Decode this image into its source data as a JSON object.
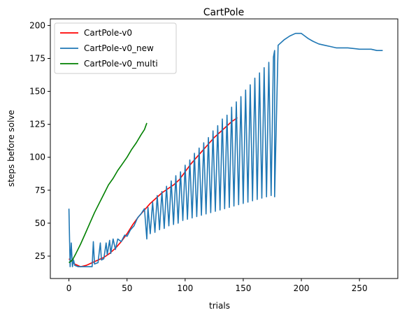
{
  "chart_data": {
    "type": "line",
    "title": "CartPole",
    "xlabel": "trials",
    "ylabel": "steps before solve",
    "xlim": [
      -16,
      283
    ],
    "ylim": [
      8,
      205
    ],
    "xticks": [
      0,
      50,
      100,
      150,
      200,
      250
    ],
    "yticks": [
      25,
      50,
      75,
      100,
      125,
      150,
      175,
      200
    ],
    "grid": false,
    "legend_position": "top-left",
    "series": [
      {
        "name": "CartPole-v0",
        "color": "#ff0000",
        "x": [
          0,
          5,
          10,
          15,
          20,
          25,
          30,
          35,
          40,
          45,
          50,
          55,
          60,
          65,
          70,
          75,
          80,
          85,
          90,
          95,
          100,
          105,
          110,
          115,
          120,
          125,
          130,
          135,
          140,
          145
        ],
        "y": [
          23,
          19,
          17,
          18,
          20,
          22,
          24,
          27,
          31,
          36,
          42,
          49,
          55,
          60,
          65,
          69,
          73,
          76,
          79,
          83,
          89,
          95,
          100,
          105,
          110,
          115,
          119,
          123,
          127,
          130
        ]
      },
      {
        "name": "CartPole-v0_new",
        "color": "#1f77b4",
        "x": [
          0,
          1,
          2,
          3,
          4,
          5,
          8,
          12,
          16,
          20,
          21,
          22,
          25,
          27,
          28,
          30,
          32,
          33,
          35,
          36,
          38,
          40,
          42,
          45,
          48,
          50,
          53,
          56,
          59,
          62,
          65,
          67,
          68,
          70,
          72,
          74,
          76,
          78,
          80,
          82,
          84,
          86,
          88,
          90,
          92,
          94,
          96,
          98,
          100,
          102,
          104,
          106,
          108,
          110,
          112,
          114,
          116,
          118,
          120,
          122,
          124,
          126,
          128,
          130,
          132,
          134,
          136,
          138,
          140,
          142,
          144,
          146,
          148,
          150,
          152,
          154,
          156,
          158,
          160,
          162,
          164,
          166,
          168,
          170,
          172,
          174,
          176,
          177,
          177,
          180,
          185,
          190,
          195,
          198,
          200,
          203,
          206,
          210,
          215,
          220,
          225,
          230,
          240,
          250,
          255,
          260,
          265,
          270
        ],
        "y": [
          61,
          17,
          35,
          17,
          22,
          18,
          17,
          17,
          17,
          17,
          36,
          19,
          20,
          35,
          22,
          23,
          35,
          26,
          37,
          27,
          38,
          30,
          38,
          36,
          41,
          40,
          45,
          48,
          54,
          57,
          61,
          38,
          62,
          42,
          66,
          43,
          71,
          45,
          74,
          46,
          78,
          48,
          82,
          49,
          86,
          50,
          89,
          52,
          94,
          53,
          98,
          54,
          103,
          55,
          107,
          56,
          111,
          57,
          115,
          58,
          120,
          59,
          124,
          60,
          129,
          61,
          132,
          62,
          138,
          63,
          142,
          64,
          146,
          65,
          151,
          66,
          155,
          67,
          160,
          68,
          164,
          69,
          168,
          70,
          172,
          71,
          176,
          181,
          70,
          185,
          189,
          192,
          194,
          194,
          194,
          192,
          190,
          188,
          186,
          185,
          184,
          183,
          183,
          182,
          182,
          182,
          181,
          181
        ]
      },
      {
        "name": "CartPole-v0_multi",
        "color": "#008000",
        "x": [
          0,
          3,
          6,
          10,
          14,
          18,
          22,
          26,
          30,
          34,
          38,
          42,
          46,
          50,
          54,
          58,
          62,
          65,
          67
        ],
        "y": [
          20,
          22,
          27,
          34,
          42,
          50,
          58,
          65,
          72,
          79,
          84,
          90,
          95,
          100,
          106,
          111,
          117,
          121,
          126
        ]
      }
    ]
  }
}
